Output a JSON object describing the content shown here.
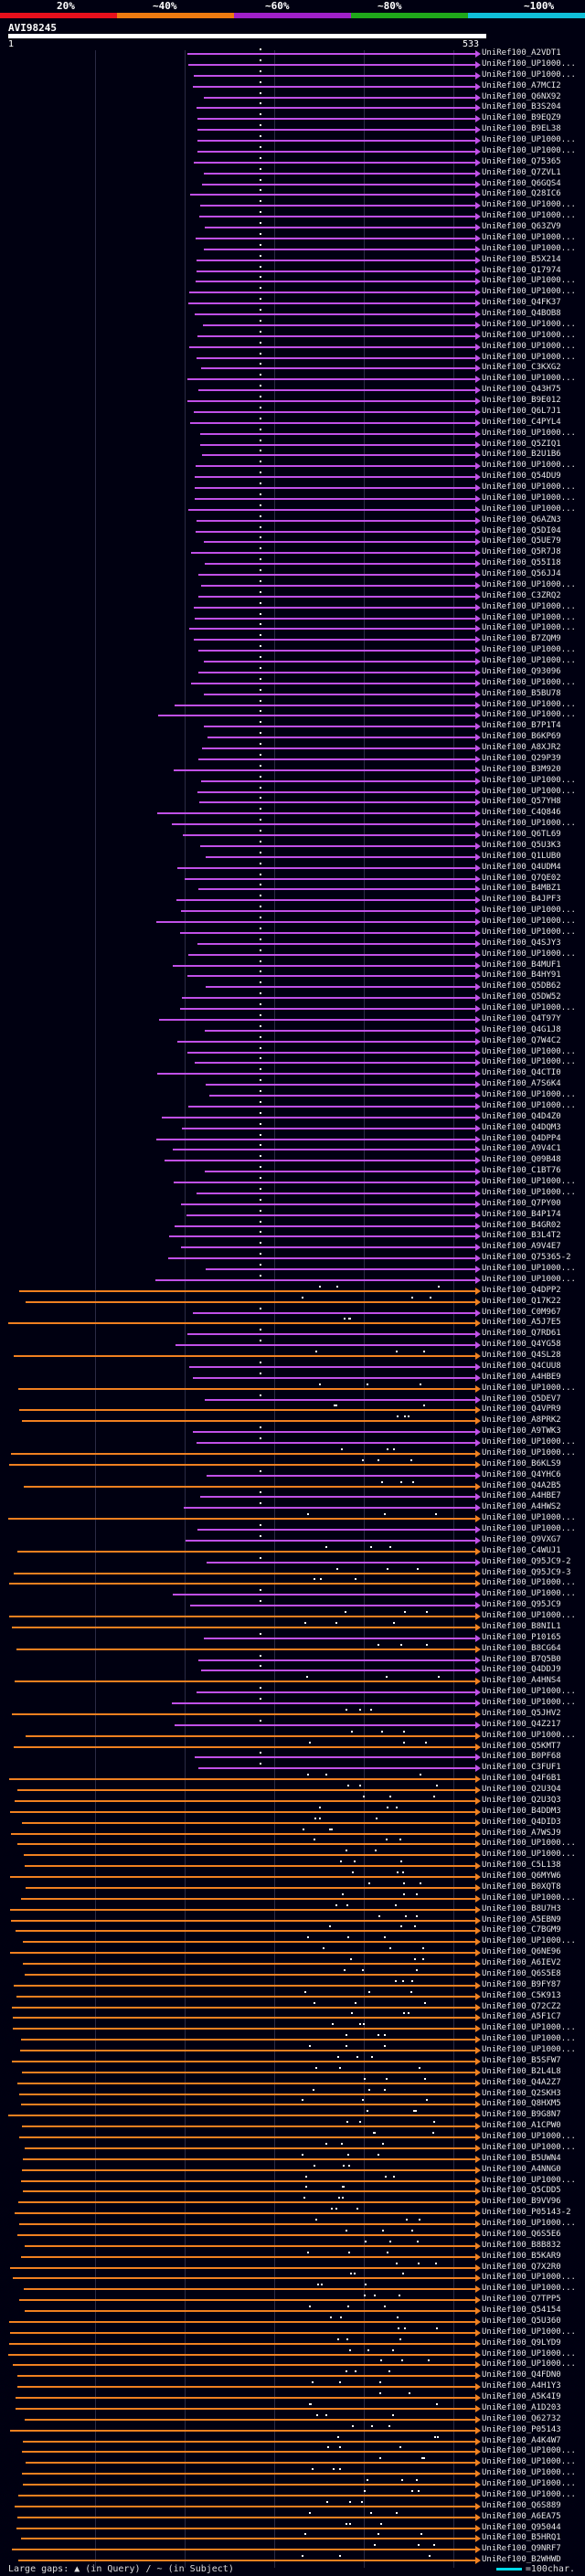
{
  "legend": {
    "labels": [
      "20%",
      "~40%",
      "~60%",
      "~80%",
      "~100%"
    ],
    "colors": [
      "#e8101c",
      "#ee7a10",
      "#a020c8",
      "#1fa81a",
      "#10c0d8"
    ]
  },
  "query": {
    "id": "AVI98245",
    "start": "1",
    "end": "533"
  },
  "hits": {
    "purple": "#c050e8",
    "orange": "#f08020",
    "labels": [
      "UniRef100_A2VDT1",
      "UniRef100_UP1000...",
      "UniRef100_UP1000...",
      "UniRef100_A7MCI2",
      "UniRef100_Q6NX92",
      "UniRef100_B3S204",
      "UniRef100_B9EQZ9",
      "UniRef100_B9EL38",
      "UniRef100_UP1000...",
      "UniRef100_UP1000...",
      "UniRef100_Q75365",
      "UniRef100_Q7ZVL1",
      "UniRef100_Q6GQS4",
      "UniRef100_Q28IC6",
      "UniRef100_UP1000...",
      "UniRef100_UP1000...",
      "UniRef100_Q63ZV9",
      "UniRef100_UP1000...",
      "UniRef100_UP1000...",
      "UniRef100_B5X214",
      "UniRef100_Q17974",
      "UniRef100_UP1000...",
      "UniRef100_UP1000...",
      "UniRef100_Q4FK37",
      "UniRef100_Q4BOB8",
      "UniRef100_UP1000...",
      "UniRef100_UP1000...",
      "UniRef100_UP1000...",
      "UniRef100_UP1000...",
      "UniRef100_C3KXG2",
      "UniRef100_UP1000...",
      "UniRef100_Q43H75",
      "UniRef100_B9E012",
      "UniRef100_Q6L7J1",
      "UniRef100_C4PYL4",
      "UniRef100_UP1000...",
      "UniRef100_Q5ZIQ1",
      "UniRef100_B2U1B6",
      "UniRef100_UP1000...",
      "UniRef100_Q54DU9",
      "UniRef100_UP1000...",
      "UniRef100_UP1000...",
      "UniRef100_UP1000...",
      "UniRef100_Q6AZN3",
      "UniRef100_Q5DI04",
      "UniRef100_Q5UE79",
      "UniRef100_Q5R7J8",
      "UniRef100_Q55I18",
      "UniRef100_Q56JJ4",
      "UniRef100_UP1000...",
      "UniRef100_C3ZRQ2",
      "UniRef100_UP1000...",
      "UniRef100_UP1000...",
      "UniRef100_UP1000...",
      "UniRef100_B7ZQM9",
      "UniRef100_UP1000...",
      "UniRef100_UP1000...",
      "UniRef100_Q93096",
      "UniRef100_UP1000...",
      "UniRef100_B5BU78",
      "UniRef100_UP1000...",
      "UniRef100_UP1000...",
      "UniRef100_B7P1T4",
      "UniRef100_B6KP69",
      "UniRef100_A8XJR2",
      "UniRef100_Q29P39",
      "UniRef100_B3M920",
      "UniRef100_UP1000...",
      "UniRef100_UP1000...",
      "UniRef100_Q57YH8",
      "UniRef100_C4Q846",
      "UniRef100_UP1000...",
      "UniRef100_Q6TL69",
      "UniRef100_Q5U3K3",
      "UniRef100_Q1LUB0",
      "UniRef100_Q4UDM4",
      "UniRef100_Q7QE02",
      "UniRef100_B4MBZ1",
      "UniRef100_B4JPF3",
      "UniRef100_UP1000...",
      "UniRef100_UP1000...",
      "UniRef100_UP1000...",
      "UniRef100_Q4SJY3",
      "UniRef100_UP1000...",
      "UniRef100_B4MUF1",
      "UniRef100_B4HY91",
      "UniRef100_Q5DB62",
      "UniRef100_Q5DW52",
      "UniRef100_UP1000...",
      "UniRef100_Q4T97Y",
      "UniRef100_Q4G1J8",
      "UniRef100_Q7W4C2",
      "UniRef100_UP1000...",
      "UniRef100_UP1000...",
      "UniRef100_Q4CTI0",
      "UniRef100_A7S6K4",
      "UniRef100_UP1000...",
      "UniRef100_UP1000...",
      "UniRef100_Q4D4Z0",
      "UniRef100_Q4DQM3",
      "UniRef100_Q4DPP4",
      "UniRef100_A9V4C1",
      "UniRef100_Q09B48",
      "UniRef100_C1BT76",
      "UniRef100_UP1000...",
      "UniRef100_UP1000...",
      "UniRef100_Q7PY00",
      "UniRef100_B4P174",
      "UniRef100_B4GR02",
      "UniRef100_B3L4T2",
      "UniRef100_A9V4E7",
      "UniRef100_Q75365-2",
      "UniRef100_UP1000...",
      "UniRef100_UP1000...",
      "UniRef100_Q4DPP2",
      "UniRef100_Q17K22",
      "UniRef100_C0M967",
      "UniRef100_A5J7E5",
      "UniRef100_Q7RD61",
      "UniRef100_Q4YG58",
      "UniRef100_Q4SL28",
      "UniRef100_Q4CUU8",
      "UniRef100_A4HBE9",
      "UniRef100_UP1000...",
      "UniRef100_Q5DEV7",
      "UniRef100_Q4VPR9",
      "UniRef100_A8PRK2",
      "UniRef100_A9TWK3",
      "UniRef100_UP1000...",
      "UniRef100_UP1000...",
      "UniRef100_B6KLS9",
      "UniRef100_Q4YHC6",
      "UniRef100_Q4A2B5",
      "UniRef100_A4HBE7",
      "UniRef100_A4HWS2",
      "UniRef100_UP1000...",
      "UniRef100_UP1000...",
      "UniRef100_Q9VXG7",
      "UniRef100_C4WUJ1",
      "UniRef100_Q95JC9-2",
      "UniRef100_Q95JC9-3",
      "UniRef100_UP1000...",
      "UniRef100_UP1000...",
      "UniRef100_Q95JC9",
      "UniRef100_UP1000...",
      "UniRef100_B8NIL1",
      "UniRef100_P10165",
      "UniRef100_B8CG64",
      "UniRef100_B7Q5B0",
      "UniRef100_Q4DDJ9",
      "UniRef100_A4HNS4",
      "UniRef100_UP1000...",
      "UniRef100_UP1000...",
      "UniRef100_Q5JHV2",
      "UniRef100_Q4Z217",
      "UniRef100_UP1000...",
      "UniRef100_Q5KMT7",
      "UniRef100_B0PF68",
      "UniRef100_C3FUF1",
      "UniRef100_Q4F6B1",
      "UniRef100_Q2U3Q4",
      "UniRef100_Q2U3Q3",
      "UniRef100_B4DDM3",
      "UniRef100_Q4DID3",
      "UniRef100_A7WSJ9",
      "UniRef100_UP1000...",
      "UniRef100_UP1000...",
      "UniRef100_C5L138",
      "UniRef100_Q6MYW6",
      "UniRef100_B0XQT8",
      "UniRef100_UP1000...",
      "UniRef100_B8U7H3",
      "UniRef100_A5EBN9",
      "UniRef100_C7BGM9",
      "UniRef100_UP1000...",
      "UniRef100_Q6NE96",
      "UniRef100_A6IEV2",
      "UniRef100_Q6S5E8",
      "UniRef100_B9FY87",
      "UniRef100_C5K913",
      "UniRef100_Q72CZ2",
      "UniRef100_A5F1C7",
      "UniRef100_UP1000...",
      "UniRef100_UP1000...",
      "UniRef100_UP1000...",
      "UniRef100_B5SFW7",
      "UniRef100_B2L4L8",
      "UniRef100_Q4A2Z7",
      "UniRef100_Q2SKH3",
      "UniRef100_Q8HXM5",
      "UniRef100_B9G8N7",
      "UniRef100_A1CPW0",
      "UniRef100_UP1000...",
      "UniRef100_UP1000...",
      "UniRef100_B5UWN4",
      "UniRef100_A4NNG0",
      "UniRef100_UP1000...",
      "UniRef100_Q5CDD5",
      "UniRef100_B9VV96",
      "UniRef100_P05143-2",
      "UniRef100_UP1000...",
      "UniRef100_Q6S5E6",
      "UniRef100_B8B832",
      "UniRef100_B5KAR9",
      "UniRef100_Q7X2R0",
      "UniRef100_UP1000...",
      "UniRef100_UP1000...",
      "UniRef100_Q7TPP5",
      "UniRef100_Q54154",
      "UniRef100_Q5U360",
      "UniRef100_UP1000...",
      "UniRef100_Q9LYD9",
      "UniRef100_UP1000...",
      "UniRef100_UP1000...",
      "UniRef100_Q4FDN0",
      "UniRef100_A4H1Y3",
      "UniRef100_A5K4I9",
      "UniRef100_A1D203",
      "UniRef100_Q62732",
      "UniRef100_P05143",
      "UniRef100_A4K4W7",
      "UniRef100_UP1000...",
      "UniRef100_UP1000...",
      "UniRef100_UP1000...",
      "UniRef100_UP1000...",
      "UniRef100_UP1000...",
      "UniRef100_Q6S889",
      "UniRef100_A6EA75",
      "UniRef100_Q95044",
      "UniRef100_B5HRQ1",
      "UniRef100_Q9NRF7",
      "UniRef100_B2WHWD"
    ]
  },
  "footer": {
    "gaps_text": "Large gaps: ▲ (in Query) / ~ (in Subject)",
    "scale_text": "=100char."
  }
}
